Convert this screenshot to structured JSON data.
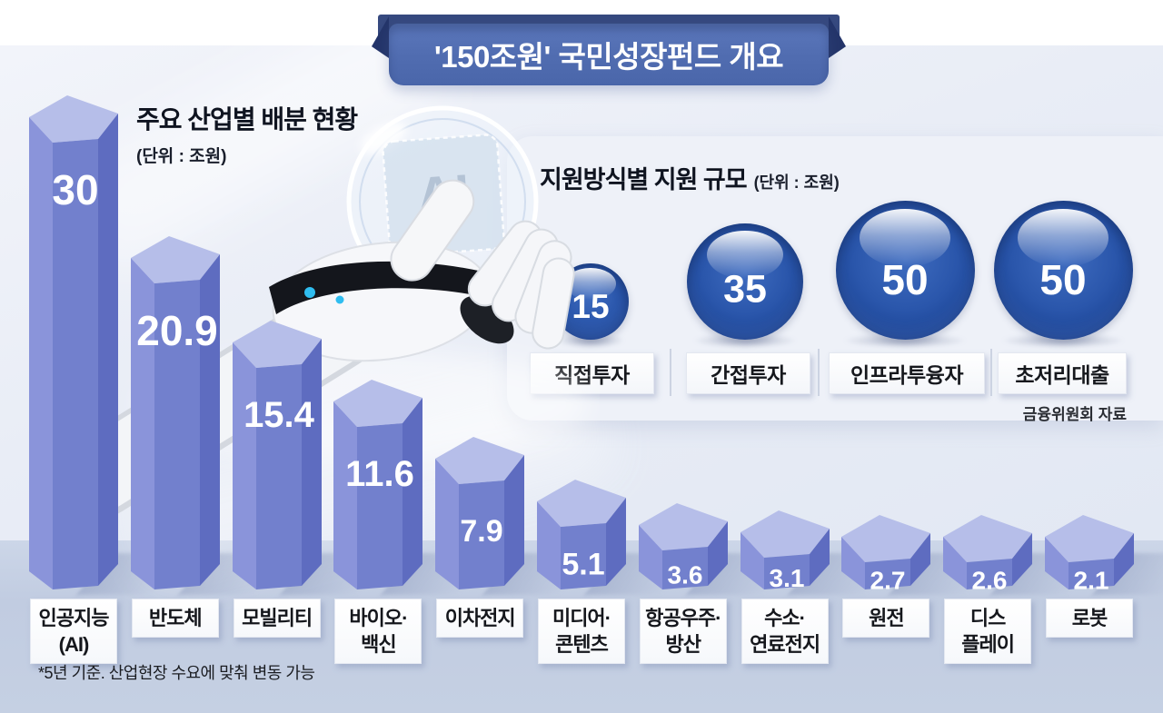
{
  "title_banner": {
    "text": "'150조원' 국민성장펀드 개요"
  },
  "bar_section": {
    "title": "주요 산업별 배분 현황",
    "unit": "(단위 : 조원)"
  },
  "bubble_section": {
    "title": "지원방식별 지원 규모",
    "unit": "(단위 : 조원)",
    "source": "금융위원회 자료"
  },
  "footnote": "*5년 기준. 산업현장 수요에 맞춰 변동 가능",
  "illustration": {
    "chip_label": "AI"
  },
  "colors": {
    "banner_blue": "#506cb0",
    "banner_back": "#36497f",
    "bar_top": "#b6bee9",
    "bar_left": "#8a94da",
    "bar_front": "#7280cd",
    "bar_right": "#5e6cc0",
    "bubble_blue": "#2a56ab",
    "bg_upper": "#e9edf6",
    "bg_floor": "#c4cfe3",
    "panel_bg": "#eef1f8"
  },
  "chart_data": [
    {
      "type": "bar",
      "title": "주요 산업별 배분 현황",
      "unit": "조원",
      "categories": [
        "인공지능(AI)",
        "반도체",
        "모빌리티",
        "바이오·백신",
        "이차전지",
        "미디어·콘텐츠",
        "항공우주·방산",
        "수소·연료전지",
        "원전",
        "디스플레이",
        "로봇"
      ],
      "category_lines": [
        [
          "인공지능",
          "(AI)"
        ],
        [
          "반도체"
        ],
        [
          "모빌리티"
        ],
        [
          "바이오·",
          "백신"
        ],
        [
          "이차전지"
        ],
        [
          "미디어·",
          "콘텐츠"
        ],
        [
          "항공우주·",
          "방산"
        ],
        [
          "수소·",
          "연료전지"
        ],
        [
          "원전"
        ],
        [
          "디스",
          "플레이"
        ],
        [
          "로봇"
        ]
      ],
      "values": [
        30,
        20.9,
        15.4,
        11.6,
        7.9,
        5.1,
        3.6,
        3.1,
        2.7,
        2.6,
        2.1
      ],
      "ylim": [
        0,
        30
      ],
      "style": "3d-hexagonal-columns"
    },
    {
      "type": "bubble",
      "title": "지원방식별 지원 규모",
      "unit": "조원",
      "categories": [
        "직접투자",
        "간접투자",
        "인프라투융자",
        "초저리대출"
      ],
      "values": [
        15,
        35,
        50,
        50
      ],
      "source": "금융위원회 자료",
      "legend_position": "none"
    }
  ]
}
